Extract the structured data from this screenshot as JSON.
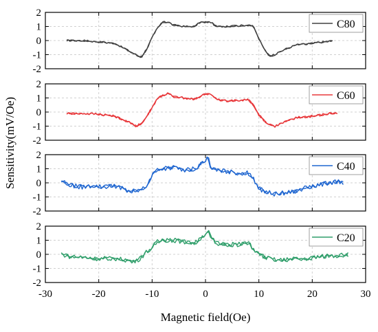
{
  "chart_data": {
    "type": "line",
    "xlabel": "Magnetic field(Oe)",
    "ylabel": "Sensitivity(mV/Oe)",
    "xlim": [
      -30,
      30
    ],
    "xticks": [
      -30,
      -20,
      -10,
      0,
      10,
      20,
      30
    ],
    "ylim": [
      -2,
      2
    ],
    "yticks": [
      -2,
      -1,
      0,
      1,
      2
    ],
    "grid": true,
    "legend_position": "top-right",
    "panels": [
      {
        "name": "C80",
        "color": "#404040",
        "x": [
          -26,
          -23,
          -20,
          -17,
          -15,
          -13,
          -12,
          -11,
          -10,
          -9,
          -8,
          -7,
          -6,
          -4,
          -2,
          -1,
          0,
          1,
          2,
          4,
          6,
          8,
          9,
          10,
          11,
          12,
          13,
          15,
          17,
          20,
          23,
          24
        ],
        "y": [
          0.0,
          0.0,
          -0.1,
          -0.2,
          -0.6,
          -1.0,
          -1.2,
          -0.6,
          0.2,
          0.9,
          1.3,
          1.3,
          1.1,
          1.0,
          1.0,
          1.3,
          1.3,
          1.3,
          1.0,
          1.0,
          1.05,
          1.1,
          1.0,
          0.1,
          -0.6,
          -1.1,
          -1.0,
          -0.6,
          -0.3,
          -0.2,
          -0.05,
          0.0
        ]
      },
      {
        "name": "C60",
        "color": "#e8383b",
        "x": [
          -26,
          -23,
          -20,
          -17,
          -15,
          -13,
          -12,
          -11,
          -10,
          -9,
          -8,
          -7,
          -6,
          -4,
          -2,
          -1,
          0,
          1,
          2,
          4,
          6,
          8,
          9,
          10,
          11,
          12,
          13,
          15,
          17,
          20,
          23,
          25
        ],
        "y": [
          -0.1,
          -0.1,
          -0.15,
          -0.3,
          -0.6,
          -1.0,
          -0.8,
          -0.3,
          0.3,
          1.0,
          1.2,
          1.3,
          1.1,
          1.0,
          0.9,
          1.1,
          1.3,
          1.3,
          0.9,
          0.8,
          0.8,
          0.9,
          0.5,
          -0.2,
          -0.6,
          -0.9,
          -1.0,
          -0.7,
          -0.4,
          -0.3,
          -0.1,
          -0.1
        ]
      },
      {
        "name": "C40",
        "color": "#1f66d0",
        "x": [
          -27,
          -25,
          -23,
          -21,
          -19,
          -17,
          -15,
          -13,
          -12,
          -11,
          -10,
          -9,
          -8,
          -6,
          -4,
          -2,
          -1,
          0,
          0.5,
          1,
          2,
          4,
          6,
          8,
          9,
          10,
          11,
          13,
          15,
          17,
          19,
          21,
          23,
          25,
          26
        ],
        "y": [
          0.1,
          -0.2,
          -0.3,
          -0.2,
          -0.3,
          -0.2,
          -0.5,
          -0.6,
          -0.5,
          -0.2,
          0.5,
          1.0,
          1.0,
          1.1,
          0.9,
          1.0,
          1.3,
          1.6,
          1.8,
          1.0,
          0.9,
          0.8,
          0.7,
          0.7,
          0.3,
          -0.4,
          -0.6,
          -0.8,
          -0.7,
          -0.6,
          -0.3,
          -0.2,
          0.0,
          0.1,
          -0.1
        ]
      },
      {
        "name": "C20",
        "color": "#2f9e6a",
        "x": [
          -27,
          -25,
          -23,
          -21,
          -19,
          -17,
          -15,
          -13,
          -12,
          -11,
          -10,
          -9,
          -8,
          -6,
          -4,
          -2,
          -1,
          0,
          0.5,
          1,
          2,
          4,
          6,
          8,
          9,
          10,
          11,
          13,
          15,
          17,
          19,
          21,
          23,
          25,
          27
        ],
        "y": [
          0.0,
          -0.2,
          -0.2,
          -0.3,
          -0.3,
          -0.3,
          -0.4,
          -0.5,
          -0.2,
          0.2,
          0.5,
          0.9,
          1.0,
          1.0,
          0.9,
          0.8,
          1.1,
          1.5,
          1.7,
          1.2,
          0.8,
          0.7,
          0.7,
          0.8,
          0.4,
          0.0,
          -0.2,
          -0.4,
          -0.4,
          -0.3,
          -0.3,
          -0.2,
          -0.1,
          -0.1,
          0.0
        ]
      }
    ]
  }
}
